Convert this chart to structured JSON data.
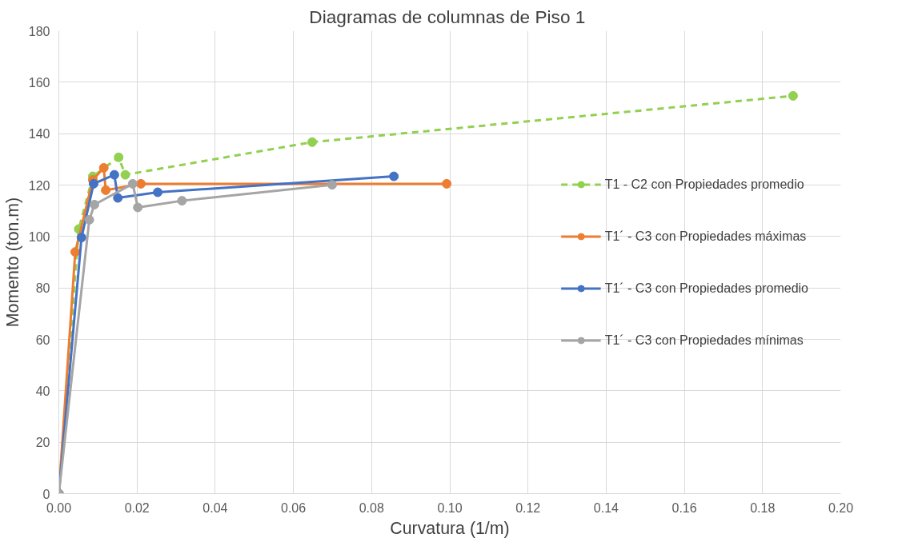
{
  "chart_data": {
    "type": "line",
    "title": "Diagramas de columnas  de Piso 1",
    "xlabel": "Curvatura (1/m)",
    "ylabel": "Momento (ton.m)",
    "xlim": [
      0,
      0.2
    ],
    "xticks": [
      {
        "value": 0,
        "label": "0.00"
      },
      {
        "value": 0.02,
        "label": "0.02"
      },
      {
        "value": 0.04,
        "label": "0.04"
      },
      {
        "value": 0.06,
        "label": "0.06"
      },
      {
        "value": 0.08,
        "label": "0.08"
      },
      {
        "value": 0.1,
        "label": "0.10"
      },
      {
        "value": 0.12,
        "label": "0.12"
      },
      {
        "value": 0.14,
        "label": "0.14"
      },
      {
        "value": 0.16,
        "label": "0.16"
      },
      {
        "value": 0.18,
        "label": "0.18"
      },
      {
        "value": 0.2,
        "label": "0.20"
      }
    ],
    "ylim": [
      0,
      180
    ],
    "yticks": [
      0,
      20,
      40,
      60,
      80,
      100,
      120,
      140,
      160,
      180
    ],
    "grid": true,
    "legend": "right",
    "marker": "circle",
    "series": [
      {
        "name": "T1 - C2 con Propiedades promedio",
        "color": "#92d050",
        "line_style": "dashed",
        "x": [
          0,
          0.0051,
          0.0087,
          0.0153,
          0.017,
          0.0648,
          0.1878
        ],
        "values": [
          0,
          102.9,
          123.4,
          130.8,
          124,
          136.7,
          154.7
        ]
      },
      {
        "name": "T1´ - C3 con Propiedades máximas",
        "color": "#ed7d31",
        "line_style": "solid",
        "x": [
          0,
          0.0042,
          0.0087,
          0.0115,
          0.012,
          0.021,
          0.0992
        ],
        "values": [
          0,
          94,
          122,
          126.7,
          118,
          120.5,
          120.5
        ]
      },
      {
        "name": "T1´ - C3 con Propiedades promedio",
        "color": "#4472c4",
        "line_style": "solid",
        "x": [
          0,
          0.0058,
          0.0089,
          0.0142,
          0.0151,
          0.0253,
          0.0857
        ],
        "values": [
          0,
          99.6,
          120.5,
          124,
          115,
          117.2,
          123.4
        ]
      },
      {
        "name": "T1´ - C3 con Propiedades mínimas",
        "color": "#a5a5a5",
        "line_style": "solid",
        "x": [
          0,
          0.0078,
          0.0091,
          0.0189,
          0.0202,
          0.0315,
          0.0699
        ],
        "values": [
          0,
          106.5,
          112.4,
          120.5,
          111.3,
          113.9,
          120.1
        ]
      }
    ]
  }
}
